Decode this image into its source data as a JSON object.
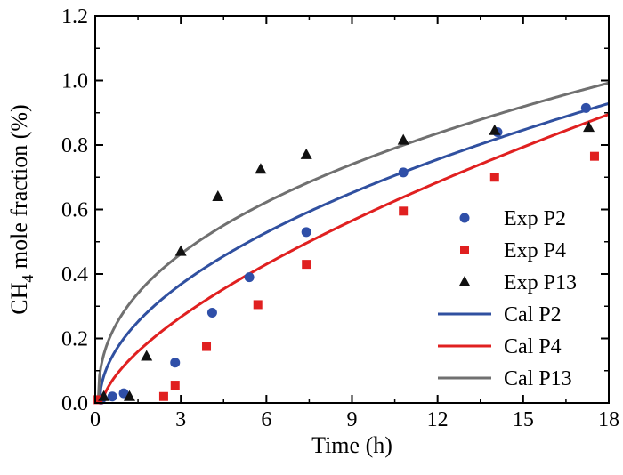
{
  "chart_data": {
    "type": "scatter",
    "title": "",
    "xlabel": "Time (h)",
    "ylabel_main": "CH",
    "ylabel_sub": "4",
    "ylabel_rest": " mole fraction (%)",
    "xlim": [
      0,
      18
    ],
    "ylim": [
      0,
      1.2
    ],
    "xticks": [
      0,
      3,
      6,
      9,
      12,
      15,
      18
    ],
    "xtick_labels": [
      "0",
      "3",
      "6",
      "9",
      "12",
      "15",
      "18"
    ],
    "yticks": [
      0.0,
      0.2,
      0.4,
      0.6,
      0.8,
      1.0,
      1.2
    ],
    "ytick_labels": [
      "0.0",
      "0.2",
      "0.4",
      "0.6",
      "0.8",
      "1.0",
      "1.2"
    ],
    "grid": false,
    "legend_position": "right",
    "series": [
      {
        "name": "Exp P2",
        "kind": "marker",
        "marker": "circle",
        "color": "#2f4fa8",
        "points": [
          [
            0.2,
            0.01
          ],
          [
            0.6,
            0.02
          ],
          [
            1.0,
            0.03
          ],
          [
            2.8,
            0.125
          ],
          [
            4.1,
            0.28
          ],
          [
            5.4,
            0.39
          ],
          [
            7.4,
            0.53
          ],
          [
            10.8,
            0.715
          ],
          [
            14.1,
            0.84
          ],
          [
            17.2,
            0.915
          ]
        ]
      },
      {
        "name": "Exp P4",
        "kind": "marker",
        "marker": "square",
        "color": "#e02020",
        "points": [
          [
            0.1,
            0.01
          ],
          [
            2.4,
            0.02
          ],
          [
            2.8,
            0.055
          ],
          [
            3.9,
            0.175
          ],
          [
            5.7,
            0.305
          ],
          [
            7.4,
            0.43
          ],
          [
            10.8,
            0.595
          ],
          [
            14.0,
            0.7
          ],
          [
            17.5,
            0.765
          ]
        ]
      },
      {
        "name": "Exp P13",
        "kind": "marker",
        "marker": "triangle",
        "color": "#111111",
        "points": [
          [
            0.3,
            0.02
          ],
          [
            1.2,
            0.02
          ],
          [
            1.8,
            0.145
          ],
          [
            3.0,
            0.47
          ],
          [
            4.3,
            0.64
          ],
          [
            5.8,
            0.725
          ],
          [
            7.4,
            0.77
          ],
          [
            10.8,
            0.815
          ],
          [
            14.0,
            0.845
          ],
          [
            17.3,
            0.855
          ]
        ]
      },
      {
        "name": "Cal P2",
        "kind": "line",
        "color": "#3050a0",
        "model": {
          "a": 0.2167,
          "t0": 0.15,
          "p": 0.505
        }
      },
      {
        "name": "Cal P4",
        "kind": "line",
        "color": "#e02020",
        "model": {
          "a": 0.138,
          "t0": 0.25,
          "p": 0.65
        }
      },
      {
        "name": "Cal P13",
        "kind": "line",
        "color": "#707070",
        "model": {
          "a": 0.2955,
          "t0": 0.1,
          "p": 0.42
        }
      }
    ]
  }
}
